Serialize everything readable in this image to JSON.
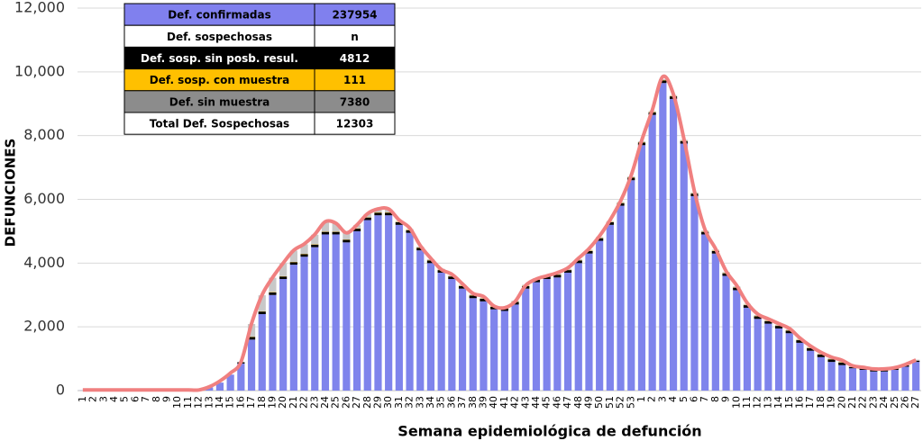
{
  "chart_data": {
    "type": "stacked-bar-line",
    "xlabel": "Semana epidemiológica de defunción",
    "ylabel": "DEFUNCIONES",
    "categories": [
      "1",
      "2",
      "3",
      "4",
      "5",
      "6",
      "7",
      "8",
      "9",
      "10",
      "11",
      "12",
      "13",
      "14",
      "15",
      "16",
      "17",
      "18",
      "19",
      "20",
      "21",
      "22",
      "23",
      "24",
      "25",
      "26",
      "27",
      "28",
      "29",
      "30",
      "31",
      "32",
      "33",
      "34",
      "35",
      "36",
      "37",
      "38",
      "39",
      "40",
      "41",
      "42",
      "43",
      "44",
      "45",
      "46",
      "47",
      "48",
      "49",
      "50",
      "51",
      "52",
      "53",
      "1",
      "2",
      "3",
      "4",
      "5",
      "6",
      "7",
      "8",
      "9",
      "10",
      "11",
      "12",
      "13",
      "14",
      "15",
      "16",
      "17",
      "18",
      "19",
      "20",
      "21",
      "22",
      "23",
      "24",
      "25",
      "26",
      "27"
    ],
    "ylim": [
      0,
      12000
    ],
    "yticks": [
      0,
      {
        "value": 2000,
        "label": "2,000"
      },
      {
        "value": 4000,
        "label": "4,000"
      },
      {
        "value": 6000,
        "label": "6,000"
      },
      {
        "value": 8000,
        "label": "8,000"
      },
      {
        "value": 10000,
        "label": "10,000"
      },
      {
        "value": 12000,
        "label": "12,000"
      }
    ],
    "grid": true,
    "series": [
      {
        "color": "#7f84ec",
        "values": [
          5,
          5,
          8,
          5,
          5,
          5,
          5,
          5,
          5,
          5,
          5,
          10,
          100,
          250,
          500,
          850,
          1600,
          2400,
          3000,
          3500,
          3950,
          4200,
          4500,
          4900,
          4900,
          4650,
          5000,
          5350,
          5500,
          5500,
          5200,
          4950,
          4400,
          4000,
          3700,
          3500,
          3200,
          2900,
          2800,
          2550,
          2500,
          2700,
          3200,
          3400,
          3500,
          3550,
          3700,
          4000,
          4300,
          4700,
          5200,
          5800,
          6600,
          7700,
          8650,
          9650,
          9150,
          7750,
          6100,
          4900,
          4300,
          3600,
          3150,
          2600,
          2250,
          2100,
          1950,
          1800,
          1500,
          1250,
          1050,
          900,
          800,
          700,
          650,
          600,
          600,
          650,
          750,
          900
        ]
      },
      {
        "color": "#000000",
        "values": [
          0,
          0,
          0,
          0,
          0,
          0,
          0,
          0,
          0,
          0,
          0,
          0,
          0,
          0,
          0,
          40,
          80,
          80,
          80,
          80,
          80,
          80,
          80,
          80,
          80,
          80,
          80,
          80,
          80,
          80,
          80,
          80,
          80,
          80,
          80,
          80,
          80,
          80,
          80,
          80,
          80,
          80,
          80,
          80,
          80,
          80,
          80,
          80,
          80,
          80,
          80,
          80,
          80,
          80,
          80,
          80,
          80,
          80,
          80,
          80,
          80,
          80,
          80,
          80,
          80,
          80,
          80,
          80,
          80,
          80,
          80,
          80,
          80,
          40,
          40,
          40,
          40,
          40,
          40,
          40
        ]
      },
      {
        "color": "#ffc000",
        "values": [
          0,
          0,
          0,
          0,
          0,
          0,
          0,
          0,
          0,
          0,
          0,
          0,
          0,
          0,
          0,
          0,
          10,
          10,
          10,
          10,
          10,
          10,
          10,
          10,
          10,
          10,
          10,
          10,
          10,
          10,
          10,
          10,
          10,
          10,
          10,
          10,
          10,
          10,
          10,
          10,
          10,
          10,
          10,
          10,
          10,
          10,
          10,
          10,
          10,
          10,
          10,
          10,
          10,
          10,
          10,
          10,
          10,
          10,
          10,
          10,
          10,
          10,
          10,
          10,
          10,
          10,
          10,
          10,
          10,
          10,
          10,
          10,
          10,
          0,
          0,
          0,
          0,
          0,
          0,
          0
        ]
      },
      {
        "color": "#c8c8c8",
        "values": [
          0,
          0,
          0,
          0,
          0,
          0,
          0,
          0,
          0,
          0,
          0,
          0,
          0,
          0,
          0,
          0,
          400,
          500,
          450,
          400,
          350,
          300,
          300,
          300,
          250,
          200,
          100,
          100,
          100,
          100,
          30,
          30,
          30,
          30,
          30,
          30,
          30,
          30,
          30,
          30,
          30,
          30,
          30,
          30,
          30,
          30,
          30,
          30,
          30,
          30,
          30,
          30,
          30,
          30,
          30,
          30,
          30,
          30,
          30,
          30,
          30,
          30,
          30,
          30,
          30,
          30,
          30,
          30,
          30,
          30,
          30,
          30,
          30,
          30,
          30,
          30,
          30,
          30,
          30,
          30
        ]
      }
    ],
    "line": {
      "color": "#f08080",
      "values": [
        20,
        20,
        20,
        20,
        20,
        20,
        20,
        20,
        20,
        20,
        20,
        20,
        120,
        300,
        550,
        900,
        2100,
        3000,
        3550,
        4000,
        4400,
        4600,
        4900,
        5300,
        5250,
        4950,
        5200,
        5550,
        5700,
        5700,
        5350,
        5100,
        4550,
        4150,
        3800,
        3650,
        3350,
        3050,
        2950,
        2650,
        2600,
        2800,
        3300,
        3500,
        3600,
        3700,
        3850,
        4150,
        4450,
        4850,
        5350,
        5950,
        6750,
        7850,
        8800,
        9850,
        9300,
        7900,
        6250,
        5050,
        4450,
        3750,
        3300,
        2750,
        2400,
        2250,
        2100,
        1950,
        1650,
        1400,
        1200,
        1050,
        950,
        780,
        730,
        680,
        680,
        720,
        820,
        960
      ]
    },
    "table": [
      {
        "label": "Def. confirmadas",
        "value": 237954,
        "color": "#8080ee",
        "text_color": "#000000"
      },
      {
        "label": "Def. sospechosas",
        "value": "n",
        "color": "#ffffff",
        "text_color": "#000000"
      },
      {
        "label": "Def. sosp. sin posb. resul.",
        "value": 4812,
        "color": "#000000",
        "text_color": "#ffffff"
      },
      {
        "label": "Def. sosp. con  muestra",
        "value": 111,
        "color": "#ffc000",
        "text_color": "#000000"
      },
      {
        "label": "Def. sin muestra",
        "value": 7380,
        "color": "#8c8c8c",
        "text_color": "#000000"
      },
      {
        "label": "Total Def. Sospechosas",
        "value": 12303,
        "color": "#ffffff",
        "text_color": "#000000"
      }
    ]
  }
}
